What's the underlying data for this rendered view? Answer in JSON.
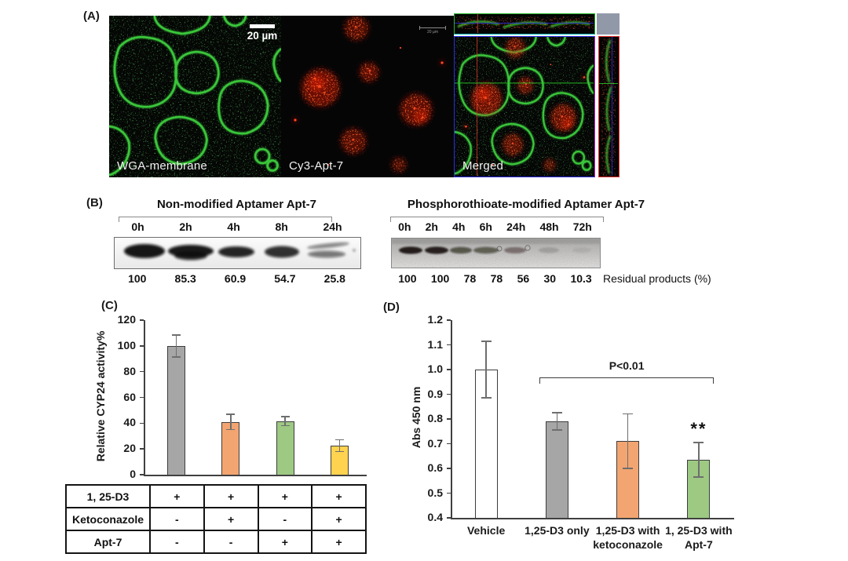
{
  "panel_a": {
    "label": "(A)",
    "captions": [
      "WGA-membrane",
      "Cy3-Apt-7",
      "Merged"
    ],
    "scalebar_left": "20 µm",
    "scalebar_mid": "20 µm"
  },
  "panel_b": {
    "label": "(B)",
    "gel_left": {
      "title": "Non-modified Aptamer Apt-7",
      "lanes": [
        "0h",
        "2h",
        "4h",
        "8h",
        "24h"
      ],
      "values": [
        "100",
        "85.3",
        "60.9",
        "54.7",
        "25.8"
      ]
    },
    "gel_right": {
      "title": "Phosphorothioate-modified Aptamer Apt-7",
      "lanes": [
        "0h",
        "2h",
        "4h",
        "6h",
        "24h",
        "48h",
        "72h"
      ],
      "values": [
        "100",
        "100",
        "78",
        "78",
        "56",
        "30",
        "10.3"
      ]
    },
    "note": "Residual products (%)"
  },
  "panel_c": {
    "label": "(C)",
    "table": {
      "rows": [
        {
          "label": "1, 25-D3",
          "cells": [
            "+",
            "+",
            "+",
            "+"
          ]
        },
        {
          "label": "Ketoconazole",
          "cells": [
            "-",
            "+",
            "-",
            "+"
          ]
        },
        {
          "label": "Apt-7",
          "cells": [
            "-",
            "-",
            "+",
            "+"
          ]
        }
      ]
    }
  },
  "panel_d": {
    "label": "(D)",
    "xtick_lines": [
      [
        "Vehicle"
      ],
      [
        "1,25-D3 only"
      ],
      [
        "1,25-D3 with",
        "ketoconazole"
      ],
      [
        "1, 25-D3 with",
        "Apt-7"
      ]
    ]
  },
  "chart_data": [
    {
      "type": "bar",
      "panel": "C",
      "title": "",
      "xlabel": "",
      "ylabel": "Relative CYP24 activity%",
      "categories": [
        "1,25-D3 only",
        "1,25-D3 + ketoconazole",
        "1,25-D3 + Apt-7",
        "1,25-D3 + ketoconazole + Apt-7"
      ],
      "values": [
        100,
        41,
        41.5,
        22.5
      ],
      "errors": [
        8.5,
        6,
        3.5,
        4.5
      ],
      "bar_colors": [
        "#A6A6A6",
        "#F3A571",
        "#9DC983",
        "#FFD34F"
      ],
      "ylim": [
        0,
        120
      ],
      "ytick_step": 20,
      "ytick_decimals": 0,
      "grid": false,
      "legend": "none"
    },
    {
      "type": "bar",
      "panel": "D",
      "title": "",
      "xlabel": "",
      "ylabel": "Abs 450 nm",
      "categories": [
        "Vehicle",
        "1,25-D3 only",
        "1,25-D3 with ketoconazole",
        "1, 25-D3 with Apt-7"
      ],
      "values": [
        1.0,
        0.79,
        0.71,
        0.635
      ],
      "errors": [
        0.115,
        0.035,
        0.11,
        0.07
      ],
      "bar_colors": [
        "#FFFFFF",
        "#A6A6A6",
        "#F3A571",
        "#9DC983"
      ],
      "ylim": [
        0.4,
        1.2
      ],
      "ytick_step": 0.1,
      "ytick_decimals": 1,
      "grid": false,
      "legend": "none",
      "significance": {
        "label": "P<0.01",
        "stars": "**",
        "bracket_from_index": 1,
        "bracket_to_index": 3,
        "stars_index": 3
      }
    }
  ],
  "colors": {
    "axis": "#404040",
    "bar_border": "#3d3d3d",
    "error_bar": "#6e6e6e",
    "merged_corner": "#9199A9",
    "membrane_green": "#3dd13d",
    "cy3_red": "#d41c00"
  }
}
